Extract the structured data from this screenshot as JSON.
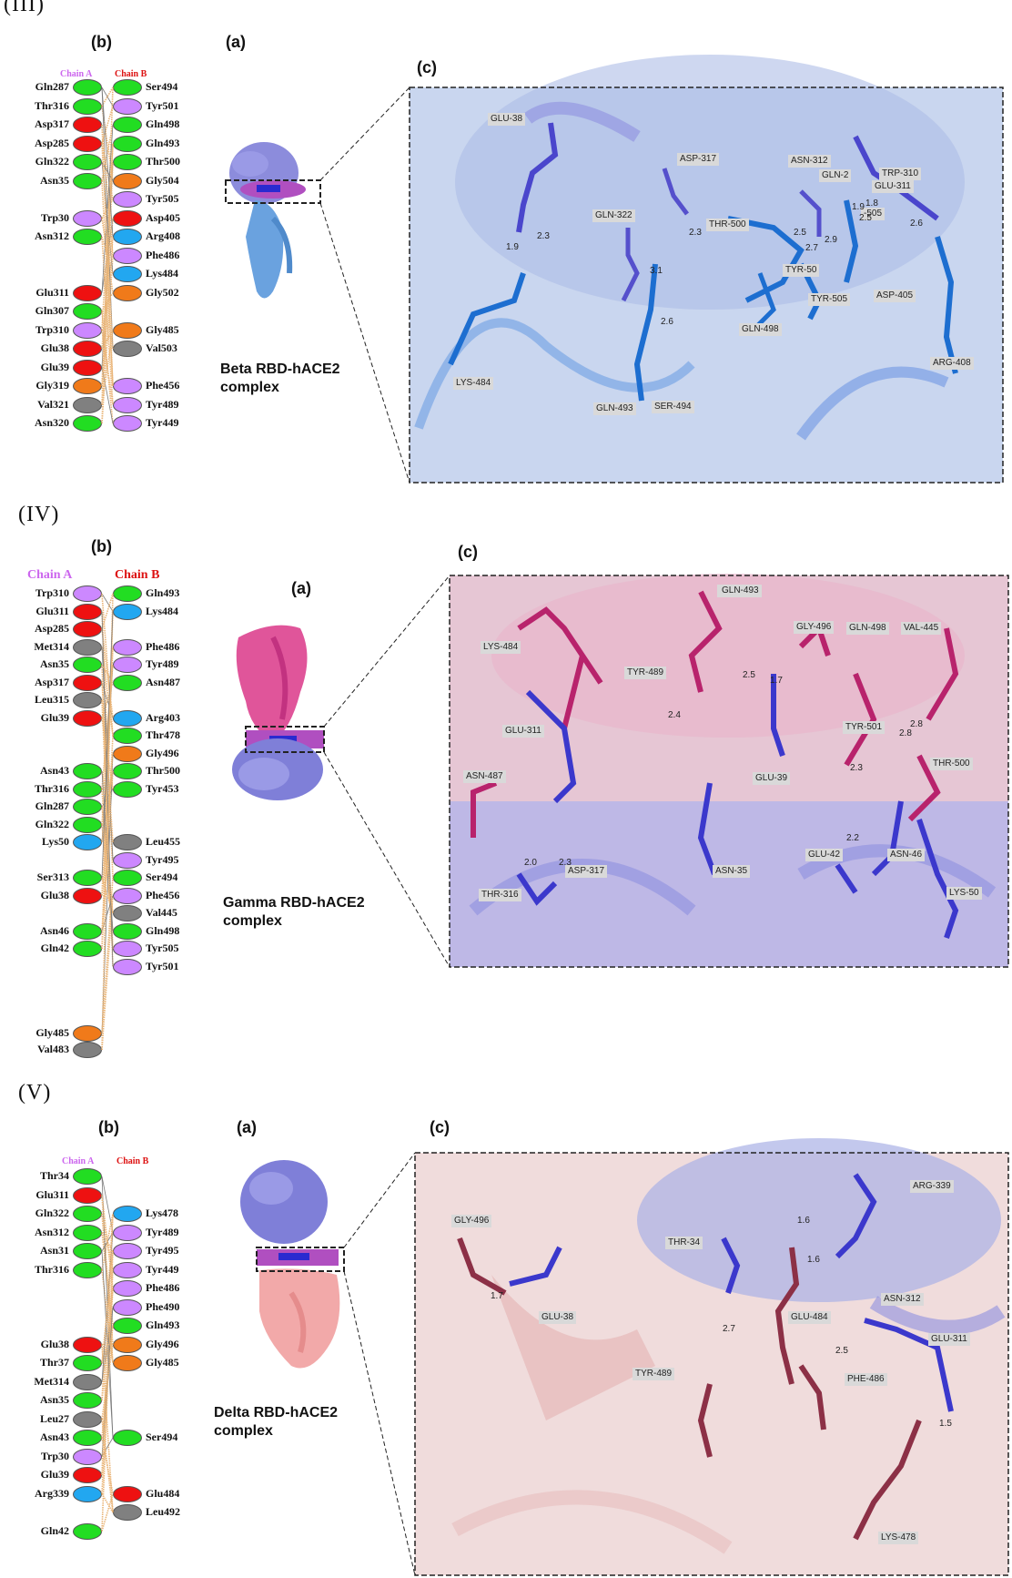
{
  "colors": {
    "green": "#22dd22",
    "purple": "#cc88ff",
    "red": "#ee1111",
    "blue": "#22a7f0",
    "orange": "#f07a1a",
    "gray": "#808080",
    "chainA": "#cc66ee",
    "chainB": "#dd1111"
  },
  "sections": [
    {
      "numeral": "(III)",
      "label_b": "(b)",
      "label_a": "(a)",
      "label_c": "(c)",
      "chainA": "Chain A",
      "chainB": "Chain B",
      "complex_line1": "Beta RBD-hACE2",
      "complex_line2": "complex",
      "left": [
        {
          "name": "Gln287",
          "color": "green"
        },
        {
          "name": "Thr316",
          "color": "green"
        },
        {
          "name": "Asp317",
          "color": "red"
        },
        {
          "name": "Asp285",
          "color": "red"
        },
        {
          "name": "Gln322",
          "color": "green"
        },
        {
          "name": "Asn35",
          "color": "green"
        },
        {
          "name": "",
          "color": ""
        },
        {
          "name": "Trp30",
          "color": "purple"
        },
        {
          "name": "Asn312",
          "color": "green"
        },
        {
          "name": "",
          "color": ""
        },
        {
          "name": "",
          "color": ""
        },
        {
          "name": "Glu311",
          "color": "red"
        },
        {
          "name": "Gln307",
          "color": "green"
        },
        {
          "name": "Trp310",
          "color": "purple"
        },
        {
          "name": "Glu38",
          "color": "red"
        },
        {
          "name": "Glu39",
          "color": "red"
        },
        {
          "name": "Gly319",
          "color": "orange"
        },
        {
          "name": "Val321",
          "color": "gray"
        },
        {
          "name": "Asn320",
          "color": "green"
        }
      ],
      "right": [
        {
          "name": "Ser494",
          "color": "green"
        },
        {
          "name": "Tyr501",
          "color": "purple"
        },
        {
          "name": "Gln498",
          "color": "green"
        },
        {
          "name": "Gln493",
          "color": "green"
        },
        {
          "name": "Thr500",
          "color": "green"
        },
        {
          "name": "Gly504",
          "color": "orange"
        },
        {
          "name": "Tyr505",
          "color": "purple"
        },
        {
          "name": "Asp405",
          "color": "red"
        },
        {
          "name": "Arg408",
          "color": "blue"
        },
        {
          "name": "Phe486",
          "color": "purple"
        },
        {
          "name": "Lys484",
          "color": "blue"
        },
        {
          "name": "Gly502",
          "color": "orange"
        },
        {
          "name": "",
          "color": ""
        },
        {
          "name": "Gly485",
          "color": "orange"
        },
        {
          "name": "Val503",
          "color": "gray"
        },
        {
          "name": "",
          "color": ""
        },
        {
          "name": "Phe456",
          "color": "purple"
        },
        {
          "name": "Tyr489",
          "color": "purple"
        },
        {
          "name": "Tyr449",
          "color": "purple"
        }
      ],
      "zoom_labels": [
        {
          "t": "GLU-38"
        },
        {
          "t": "ASP-317"
        },
        {
          "t": "GLN-322"
        },
        {
          "t": "THR-500"
        },
        {
          "t": "ASN-312"
        },
        {
          "t": "GLN-2"
        },
        {
          "t": "TRP-310"
        },
        {
          "t": "GLU-311"
        },
        {
          "t": "-505"
        },
        {
          "t": "TYR-50"
        },
        {
          "t": "TYR-505"
        },
        {
          "t": "ASP-405"
        },
        {
          "t": "GLN-498"
        },
        {
          "t": "ARG-408"
        },
        {
          "t": "LYS-484"
        },
        {
          "t": "GLN-493"
        },
        {
          "t": "SER-494"
        }
      ],
      "distances": [
        "1.9",
        "2.3",
        "2.3",
        "3.1",
        "2.6",
        "2.5",
        "2.7",
        "2.9",
        "1.9",
        "1.8",
        "2.5",
        "2.6"
      ]
    },
    {
      "numeral": "(IV)",
      "label_b": "(b)",
      "label_a": "(a)",
      "label_c": "(c)",
      "chainA": "Chain A",
      "chainB": "Chain B",
      "complex_line1": "Gamma RBD-hACE2",
      "complex_line2": "complex",
      "left": [
        {
          "name": "Trp310",
          "color": "purple"
        },
        {
          "name": "Glu311",
          "color": "red"
        },
        {
          "name": "Asp285",
          "color": "red"
        },
        {
          "name": "Met314",
          "color": "gray"
        },
        {
          "name": "Asn35",
          "color": "green"
        },
        {
          "name": "Asp317",
          "color": "red"
        },
        {
          "name": "Leu315",
          "color": "gray"
        },
        {
          "name": "Glu39",
          "color": "red"
        },
        {
          "name": "",
          "color": ""
        },
        {
          "name": "",
          "color": ""
        },
        {
          "name": "Asn43",
          "color": "green"
        },
        {
          "name": "Thr316",
          "color": "green"
        },
        {
          "name": "Gln287",
          "color": "green"
        },
        {
          "name": "Gln322",
          "color": "green"
        },
        {
          "name": "Lys50",
          "color": "blue"
        },
        {
          "name": "",
          "color": ""
        },
        {
          "name": "Ser313",
          "color": "green"
        },
        {
          "name": "Glu38",
          "color": "red"
        },
        {
          "name": "",
          "color": ""
        },
        {
          "name": "Asn46",
          "color": "green"
        },
        {
          "name": "Gln42",
          "color": "green"
        }
      ],
      "right": [
        {
          "name": "Gln493",
          "color": "green"
        },
        {
          "name": "Lys484",
          "color": "blue"
        },
        {
          "name": "",
          "color": ""
        },
        {
          "name": "Phe486",
          "color": "purple"
        },
        {
          "name": "Tyr489",
          "color": "purple"
        },
        {
          "name": "Asn487",
          "color": "green"
        },
        {
          "name": "",
          "color": ""
        },
        {
          "name": "Arg403",
          "color": "blue"
        },
        {
          "name": "Thr478",
          "color": "green"
        },
        {
          "name": "Gly496",
          "color": "orange"
        },
        {
          "name": "Thr500",
          "color": "green"
        },
        {
          "name": "Tyr453",
          "color": "green"
        },
        {
          "name": "",
          "color": ""
        },
        {
          "name": "",
          "color": ""
        },
        {
          "name": "Leu455",
          "color": "gray"
        },
        {
          "name": "Tyr495",
          "color": "purple"
        },
        {
          "name": "Ser494",
          "color": "green"
        },
        {
          "name": "Phe456",
          "color": "purple"
        },
        {
          "name": "Val445",
          "color": "gray"
        },
        {
          "name": "Gln498",
          "color": "green"
        },
        {
          "name": "Tyr505",
          "color": "purple"
        },
        {
          "name": "Tyr501",
          "color": "purple"
        }
      ],
      "extra": [
        {
          "name": "Gly485",
          "color": "orange"
        },
        {
          "name": "Val483",
          "color": "gray"
        }
      ],
      "zoom_labels": [
        {
          "t": "TYR-4"
        },
        {
          "t": "GLN-493"
        },
        {
          "t": "LYS-484"
        },
        {
          "t": "TYR-489"
        },
        {
          "t": "GLY-496"
        },
        {
          "t": "GLN-498"
        },
        {
          "t": "VAL-445"
        },
        {
          "t": "GLU-311"
        },
        {
          "t": "TYR-501"
        },
        {
          "t": "ASN-487"
        },
        {
          "t": "GLU-39"
        },
        {
          "t": "THR-500"
        },
        {
          "t": "GLU-42"
        },
        {
          "t": "ASN-46"
        },
        {
          "t": "ASP-317"
        },
        {
          "t": "ASN-35"
        },
        {
          "t": "THR-316"
        },
        {
          "t": "LYS-50"
        }
      ],
      "distances": [
        "2.5",
        "1.7",
        "2.4",
        "2.0",
        "2.3",
        "2.8",
        "2.8",
        "2.3",
        "2.2"
      ]
    },
    {
      "numeral": "(V)",
      "label_b": "(b)",
      "label_a": "(a)",
      "label_c": "(c)",
      "chainA": "Chain A",
      "chainB": "Chain B",
      "complex_line1": "Delta RBD-hACE2",
      "complex_line2": "complex",
      "left": [
        {
          "name": "Thr34",
          "color": "green"
        },
        {
          "name": "Glu311",
          "color": "red"
        },
        {
          "name": "Gln322",
          "color": "green"
        },
        {
          "name": "Asn312",
          "color": "green"
        },
        {
          "name": "Asn31",
          "color": "green"
        },
        {
          "name": "Thr316",
          "color": "green"
        },
        {
          "name": "",
          "color": ""
        },
        {
          "name": "",
          "color": ""
        },
        {
          "name": "",
          "color": ""
        },
        {
          "name": "Glu38",
          "color": "red"
        },
        {
          "name": "Thr37",
          "color": "green"
        },
        {
          "name": "Met314",
          "color": "gray"
        },
        {
          "name": "Asn35",
          "color": "green"
        },
        {
          "name": "Leu27",
          "color": "gray"
        },
        {
          "name": "Asn43",
          "color": "green"
        },
        {
          "name": "Trp30",
          "color": "purple"
        },
        {
          "name": "Glu39",
          "color": "red"
        },
        {
          "name": "Arg339",
          "color": "blue"
        },
        {
          "name": "",
          "color": ""
        },
        {
          "name": "Gln42",
          "color": "green"
        }
      ],
      "right": [
        {
          "name": "",
          "color": ""
        },
        {
          "name": "",
          "color": ""
        },
        {
          "name": "Lys478",
          "color": "blue"
        },
        {
          "name": "Tyr489",
          "color": "purple"
        },
        {
          "name": "Tyr495",
          "color": "purple"
        },
        {
          "name": "Tyr449",
          "color": "purple"
        },
        {
          "name": "Phe486",
          "color": "purple"
        },
        {
          "name": "Phe490",
          "color": "purple"
        },
        {
          "name": "Gln493",
          "color": "green"
        },
        {
          "name": "Gly496",
          "color": "orange"
        },
        {
          "name": "Gly485",
          "color": "orange"
        },
        {
          "name": "",
          "color": ""
        },
        {
          "name": "",
          "color": ""
        },
        {
          "name": "",
          "color": ""
        },
        {
          "name": "Ser494",
          "color": "green"
        },
        {
          "name": "",
          "color": ""
        },
        {
          "name": "",
          "color": ""
        },
        {
          "name": "Glu484",
          "color": "red"
        },
        {
          "name": "Leu492",
          "color": "gray"
        }
      ],
      "zoom_labels": [
        {
          "t": "ARG-339"
        },
        {
          "t": "GLY-496"
        },
        {
          "t": "THR-34"
        },
        {
          "t": "ASN-312"
        },
        {
          "t": "GLU-38"
        },
        {
          "t": "GLU-484"
        },
        {
          "t": "GLU-311"
        },
        {
          "t": "TYR-489"
        },
        {
          "t": "PHE-486"
        },
        {
          "t": "LYS-478"
        }
      ],
      "distances": [
        "1.7",
        "1.6",
        "1.6",
        "2.7",
        "2.5",
        "1.5"
      ]
    }
  ]
}
